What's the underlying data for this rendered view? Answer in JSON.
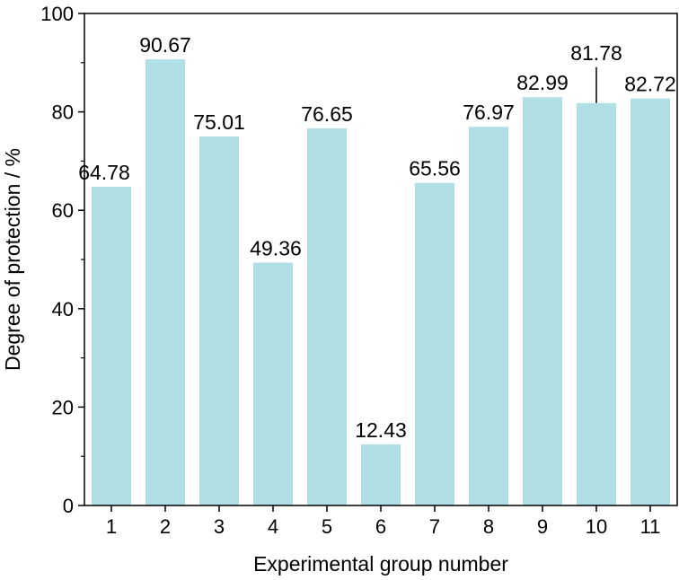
{
  "chart_data": {
    "type": "bar",
    "title": "",
    "xlabel": "Experimental group number",
    "ylabel": "Degree of protection / %",
    "categories": [
      "1",
      "2",
      "3",
      "4",
      "5",
      "6",
      "7",
      "8",
      "9",
      "10",
      "11"
    ],
    "values": [
      64.78,
      90.67,
      75.01,
      49.36,
      76.65,
      12.43,
      65.56,
      76.97,
      82.99,
      81.78,
      82.72
    ],
    "data_labels": [
      "64.78",
      "90.67",
      "75.01",
      "49.36",
      "76.65",
      "12.43",
      "65.56",
      "76.97",
      "82.99",
      "81.78",
      "82.72"
    ],
    "ylim": [
      0,
      100
    ],
    "yticks": [
      0,
      20,
      40,
      60,
      80,
      100
    ],
    "ytick_labels": [
      "0",
      "20",
      "40",
      "60",
      "80",
      "100"
    ],
    "grid": false,
    "legend": "none",
    "bar_color": "#b0e0e6",
    "axis_color": "#000000"
  }
}
